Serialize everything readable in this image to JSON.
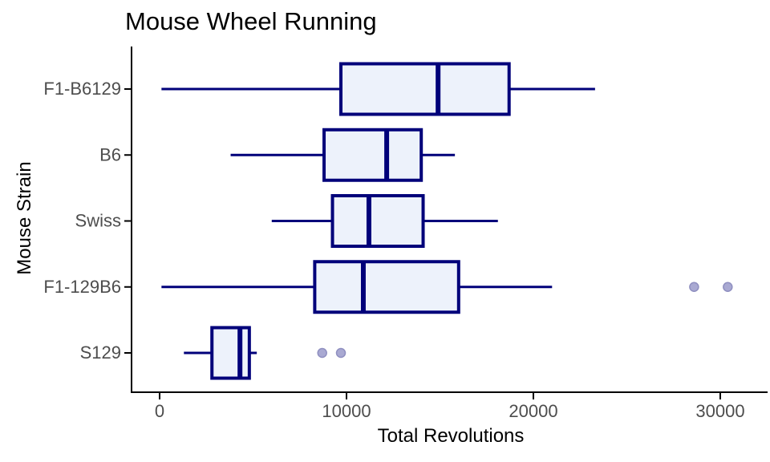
{
  "title": "Mouse Wheel Running",
  "chart_data": {
    "type": "boxplot",
    "orientation": "horizontal",
    "title": "Mouse Wheel Running",
    "xlabel": "Total Revolutions",
    "ylabel": "Mouse Strain",
    "x_ticks": [
      "0",
      "10000",
      "20000",
      "30000"
    ],
    "x_tick_values": [
      0,
      10000,
      20000,
      30000
    ],
    "xlim": [
      -1550,
      32600
    ],
    "grid": false,
    "legend": "none",
    "categories": [
      "F1-B6129",
      "B6",
      "Swiss",
      "F1-129B6",
      "S129"
    ],
    "series": [
      {
        "strain": "F1-B6129",
        "min": 100,
        "q1": 9700,
        "median": 14900,
        "q3": 18700,
        "max": 23300,
        "outliers": []
      },
      {
        "strain": "B6",
        "min": 3800,
        "q1": 8800,
        "median": 12150,
        "q3": 14000,
        "max": 15800,
        "outliers": []
      },
      {
        "strain": "Swiss",
        "min": 6000,
        "q1": 9250,
        "median": 11200,
        "q3": 14100,
        "max": 18100,
        "outliers": []
      },
      {
        "strain": "F1-129B6",
        "min": 100,
        "q1": 8300,
        "median": 10900,
        "q3": 16000,
        "max": 21000,
        "outliers": [
          28600,
          30400
        ]
      },
      {
        "strain": "S129",
        "min": 1300,
        "q1": 2800,
        "median": 4300,
        "q3": 4800,
        "max": 5200,
        "outliers": [
          8700,
          9700
        ]
      }
    ],
    "colors": {
      "box_border": "#00007A",
      "box_fill": "#EDF2FB",
      "median": "#00007A",
      "whisker": "#00007A",
      "outlier_fill": "#A9A9D2",
      "outlier_stroke": "#8F8FC0",
      "axis_line": "#000000",
      "tick_label": "#4D4D4D",
      "title_color": "#000000"
    }
  }
}
